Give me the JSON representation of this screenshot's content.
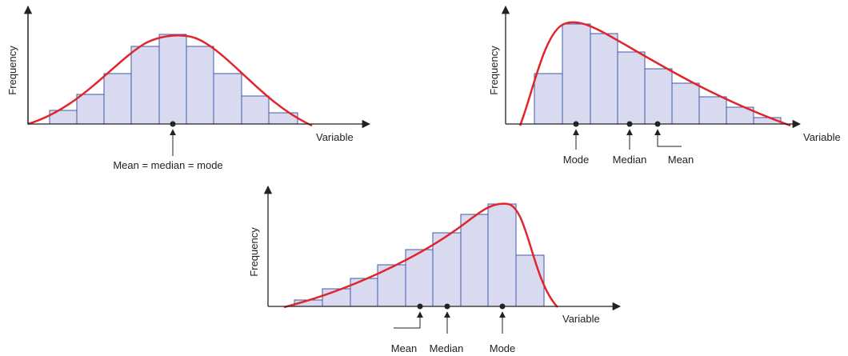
{
  "panels": [
    {
      "y_label": "Frequency",
      "x_label": "Variable",
      "markers": [
        "Mean = median = mode"
      ]
    },
    {
      "y_label": "Frequency",
      "x_label": "Variable",
      "markers": [
        "Mode",
        "Median",
        "Mean"
      ]
    },
    {
      "y_label": "Frequency",
      "x_label": "Variable",
      "markers": [
        "Mean",
        "Median",
        "Mode"
      ]
    }
  ]
}
